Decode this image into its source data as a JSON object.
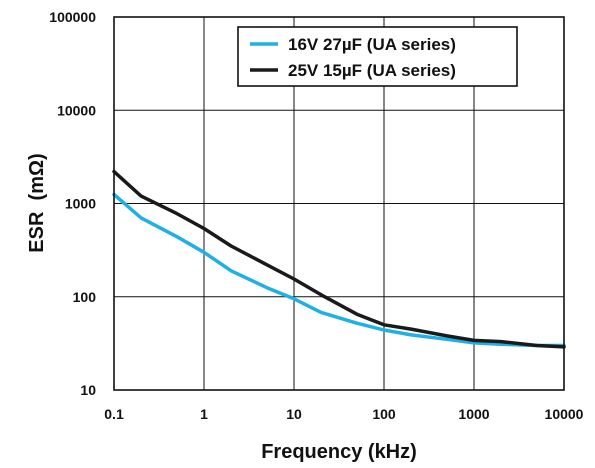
{
  "chart_data": {
    "type": "line",
    "title": "",
    "xlabel": "Frequency (kHz)",
    "ylabel": "ESR  (mΩ)",
    "xscale": "log",
    "yscale": "log",
    "xlim": [
      0.1,
      10000
    ],
    "ylim": [
      10,
      100000
    ],
    "xticks": [
      {
        "value": 0.1,
        "label": "0.1"
      },
      {
        "value": 1,
        "label": "1"
      },
      {
        "value": 10,
        "label": "10"
      },
      {
        "value": 100,
        "label": "100"
      },
      {
        "value": 1000,
        "label": "1000"
      },
      {
        "value": 10000,
        "label": "10000"
      }
    ],
    "yticks": [
      {
        "value": 10,
        "label": "10"
      },
      {
        "value": 100,
        "label": "100"
      },
      {
        "value": 1000,
        "label": "1000"
      },
      {
        "value": 10000,
        "label": "10000"
      },
      {
        "value": 100000,
        "label": "100000"
      }
    ],
    "grid": true,
    "legend_position": "top-right",
    "series": [
      {
        "name": "16V 27µF (UA series)",
        "color": "#1fb0e6",
        "x": [
          0.1,
          0.2,
          0.5,
          1,
          2,
          5,
          10,
          20,
          50,
          100,
          200,
          500,
          1000,
          2000,
          5000,
          10000
        ],
        "y": [
          1250,
          700,
          440,
          300,
          190,
          125,
          95,
          68,
          52,
          44,
          39,
          35,
          32,
          31,
          30,
          30
        ]
      },
      {
        "name": "25V 15µF (UA series)",
        "color": "#1a1a1a",
        "x": [
          0.1,
          0.2,
          0.5,
          1,
          2,
          5,
          10,
          20,
          50,
          100,
          200,
          500,
          1000,
          2000,
          5000,
          10000
        ],
        "y": [
          2200,
          1200,
          780,
          540,
          350,
          220,
          155,
          105,
          65,
          50,
          45,
          38,
          34,
          33,
          30,
          29
        ]
      }
    ]
  }
}
